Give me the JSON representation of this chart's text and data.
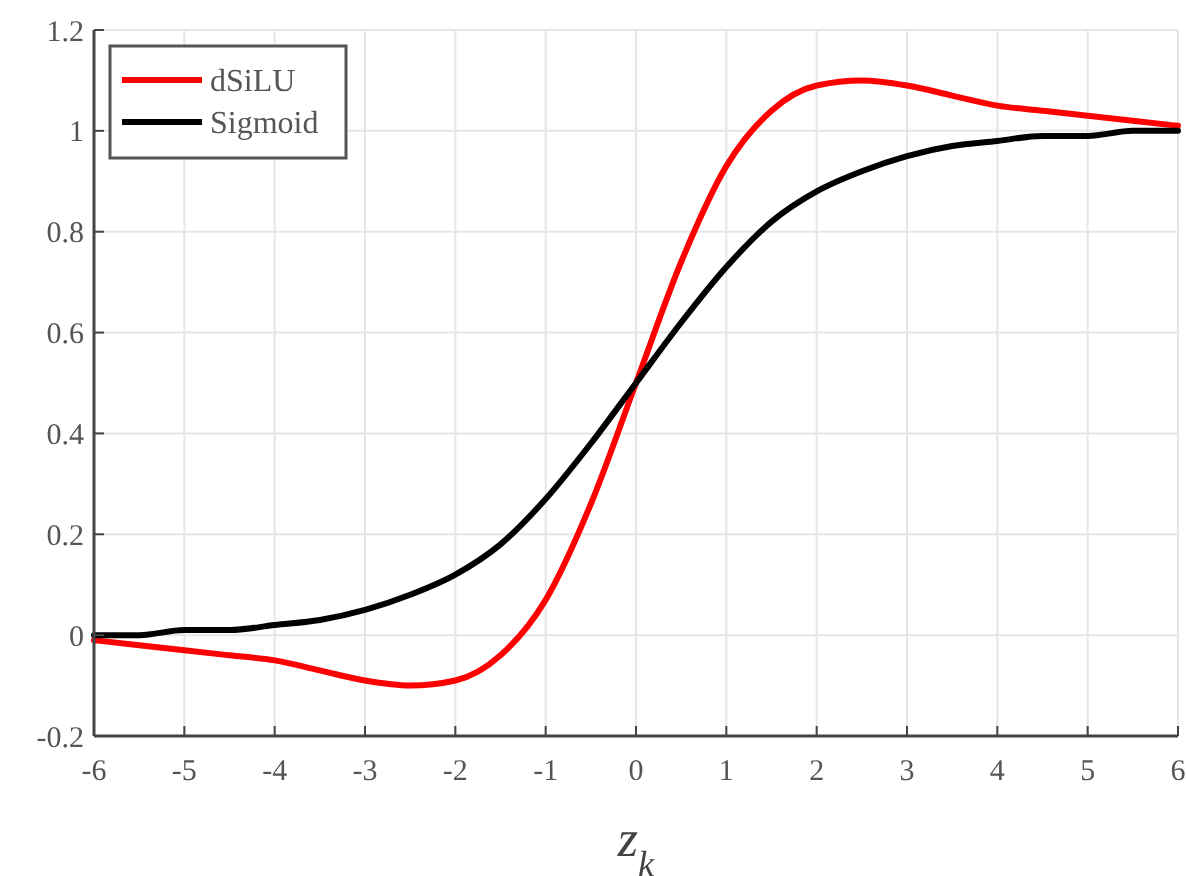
{
  "chart_data": {
    "type": "line",
    "xlabel": "z$_{k}$",
    "x": [
      -6,
      -5.5,
      -5,
      -4.5,
      -4,
      -3.5,
      -3,
      -2.5,
      -2,
      -1.5,
      -1,
      -0.5,
      0,
      0.5,
      1,
      1.5,
      2,
      2.5,
      3,
      3.5,
      4,
      4.5,
      5,
      5.5,
      6
    ],
    "series": [
      {
        "name": "dSiLU",
        "color": "#ff0000",
        "values": [
          -0.01,
          -0.02,
          -0.03,
          -0.04,
          -0.05,
          -0.07,
          -0.09,
          -0.1,
          -0.09,
          -0.04,
          0.07,
          0.26,
          0.5,
          0.74,
          0.93,
          1.04,
          1.09,
          1.1,
          1.09,
          1.07,
          1.05,
          1.04,
          1.03,
          1.02,
          1.01
        ]
      },
      {
        "name": "Sigmoid",
        "color": "#000000",
        "values": [
          0.0,
          0.0,
          0.01,
          0.01,
          0.02,
          0.03,
          0.05,
          0.08,
          0.12,
          0.18,
          0.27,
          0.38,
          0.5,
          0.62,
          0.73,
          0.82,
          0.88,
          0.92,
          0.95,
          0.97,
          0.98,
          0.99,
          0.99,
          1.0,
          1.0
        ]
      }
    ],
    "xlim": [
      -6,
      6
    ],
    "ylim": [
      -0.2,
      1.2
    ],
    "xticks": [
      -6,
      -5,
      -4,
      -3,
      -2,
      -1,
      0,
      1,
      2,
      3,
      4,
      5,
      6
    ],
    "yticks": [
      -0.2,
      0,
      0.2,
      0.4,
      0.6,
      0.8,
      1,
      1.2
    ],
    "grid": true,
    "legend": "top left",
    "line_style": "solid"
  }
}
